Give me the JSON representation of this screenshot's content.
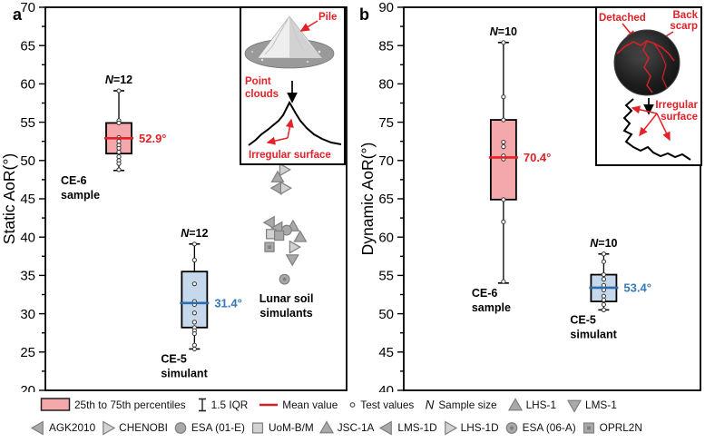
{
  "colors": {
    "fills": {
      "pink": {
        "box": "#f4a8ab",
        "line": "#e32127",
        "text": "#e32127"
      },
      "blue": {
        "box": "#c6d9ec",
        "line": "#2d6dad",
        "text": "#3579b9"
      }
    },
    "symbol": {
      "fill": "#a9a9a9",
      "stroke": "#7f7f7f",
      "open_fill": "#d2d2d2",
      "dot": "#7f7f7f"
    },
    "legend_mean_line": "#d42127",
    "red_annotation": "#e32127"
  },
  "chart_data": [
    {
      "type": "boxplot",
      "panel_label": "a",
      "ylabel": "Static AoR(°)",
      "ylim": [
        20,
        70
      ],
      "ytick_major": 5,
      "ytick_minor": 2.5,
      "grid": false,
      "boxes": [
        {
          "name_lines": [
            "CE-6",
            "sample"
          ],
          "n_label": "N=12",
          "n": 12,
          "x": 0.244,
          "label_dx": -64,
          "whisker_low": 48.7,
          "q1": 50.9,
          "mean": 52.9,
          "q3": 54.9,
          "whisker_high": 59.1,
          "mean_label": "52.9°",
          "fill": "pink",
          "points": [
            59.1,
            55.2,
            54.9,
            53.0,
            52.5,
            52.0,
            51.6,
            51.1,
            50.5,
            50.0,
            49.6,
            48.8
          ]
        },
        {
          "name_lines": [
            "CE-5",
            "simulant"
          ],
          "n_label": "N=12",
          "n": 12,
          "x": 0.495,
          "label_dx": -37,
          "whisker_low": 25.4,
          "q1": 28.2,
          "mean": 31.4,
          "q3": 35.5,
          "whisker_high": 39.1,
          "mean_label": "31.4°",
          "fill": "blue",
          "points": [
            39.1,
            37.0,
            33.9,
            31.6,
            31.2,
            30.1,
            28.9,
            28.2,
            27.8,
            27.4,
            25.9,
            25.4
          ]
        }
      ],
      "scatter": {
        "label_lines": [
          "Lunar soil",
          "simulants"
        ],
        "label_x": 0.8,
        "label_v": 31.5,
        "points": [
          {
            "sym": "tri-right-open",
            "x": 0.793,
            "v": 48.8
          },
          {
            "sym": "tri-up",
            "x": 0.771,
            "v": 47.8
          },
          {
            "sym": "tri-left",
            "x": 0.769,
            "v": 46.4
          },
          {
            "sym": "tri-right-open",
            "x": 0.796,
            "v": 46.4
          },
          {
            "sym": "tri-left",
            "x": 0.745,
            "v": 41.9
          },
          {
            "sym": "tri-left",
            "x": 0.771,
            "v": 41.2
          },
          {
            "sym": "tri-up",
            "x": 0.822,
            "v": 41.4
          },
          {
            "sym": "circle",
            "x": 0.801,
            "v": 40.9
          },
          {
            "sym": "square-open",
            "x": 0.749,
            "v": 40.4
          },
          {
            "sym": "square",
            "x": 0.776,
            "v": 40.2
          },
          {
            "sym": "tri-up",
            "x": 0.846,
            "v": 40.0
          },
          {
            "sym": "square-dot",
            "x": 0.744,
            "v": 38.7
          },
          {
            "sym": "tri-right-open",
            "x": 0.826,
            "v": 38.7
          },
          {
            "sym": "tri-down",
            "x": 0.82,
            "v": 37.1
          },
          {
            "sym": "circle-dot",
            "x": 0.794,
            "v": 34.5
          }
        ]
      }
    },
    {
      "type": "boxplot",
      "panel_label": "b",
      "ylabel": "Dynamic AoR(°)",
      "ylim": [
        40,
        90
      ],
      "ytick_major": 5,
      "ytick_minor": 2.5,
      "grid": false,
      "boxes": [
        {
          "name_lines": [
            "CE-6",
            "sample"
          ],
          "n_label": "N=10",
          "n": 10,
          "x": 0.336,
          "label_dx": -35,
          "whisker_low": 54.0,
          "q1": 64.9,
          "mean": 70.4,
          "q3": 75.3,
          "whisker_high": 85.4,
          "mean_label": "70.4°",
          "fill": "pink",
          "points": [
            85.4,
            78.3,
            75.3,
            72.4,
            71.8,
            70.6,
            70.2,
            64.9,
            62.0,
            54.2
          ]
        },
        {
          "name_lines": [
            "CE-5",
            "simulant"
          ],
          "n_label": "N=10",
          "n": 10,
          "x": 0.674,
          "label_dx": -37,
          "whisker_low": 50.5,
          "q1": 51.6,
          "mean": 53.4,
          "q3": 55.1,
          "whisker_high": 57.8,
          "mean_label": "53.4°",
          "fill": "blue",
          "points": [
            57.8,
            56.8,
            55.1,
            54.5,
            53.7,
            53.1,
            52.3,
            51.8,
            51.2,
            50.5
          ]
        }
      ],
      "scatter": null
    }
  ],
  "insets": {
    "a": {
      "pile": "Pile",
      "point_clouds_1": "Point",
      "point_clouds_2": "clouds",
      "irregular": "Irregular surface"
    },
    "b": {
      "detached": "Detached",
      "back_1": "Back",
      "back_2": "scarp",
      "irregular_1": "Irregular",
      "irregular_2": "surface"
    }
  },
  "legend": {
    "row1": [
      {
        "icon": "pink-box",
        "label": "25th to 75th percentiles"
      },
      {
        "icon": "iqr",
        "label": "1.5 IQR"
      },
      {
        "icon": "mean-line",
        "label": "Mean value"
      },
      {
        "icon": "test-circle",
        "label": "Test values"
      },
      {
        "icon": "n",
        "icon_char": "N",
        "label": "Sample size"
      },
      {
        "icon": "tri-up",
        "label": "LHS-1"
      },
      {
        "icon": "tri-down",
        "label": "LMS-1"
      }
    ],
    "row2": [
      {
        "icon": "tri-left",
        "label": "AGK2010"
      },
      {
        "icon": "tri-right-open",
        "label": "CHENOBI"
      },
      {
        "icon": "circle",
        "label": "ESA (01-E)"
      },
      {
        "icon": "square-open",
        "label": "UoM-B/M"
      },
      {
        "icon": "tri-up",
        "label": "JSC-1A"
      },
      {
        "icon": "tri-left",
        "label": "LMS-1D"
      },
      {
        "icon": "tri-right-open",
        "label": "LHS-1D"
      },
      {
        "icon": "circle-dot",
        "label": "ESA (06-A)"
      },
      {
        "icon": "square-dot",
        "label": "OPRL2N"
      }
    ]
  }
}
